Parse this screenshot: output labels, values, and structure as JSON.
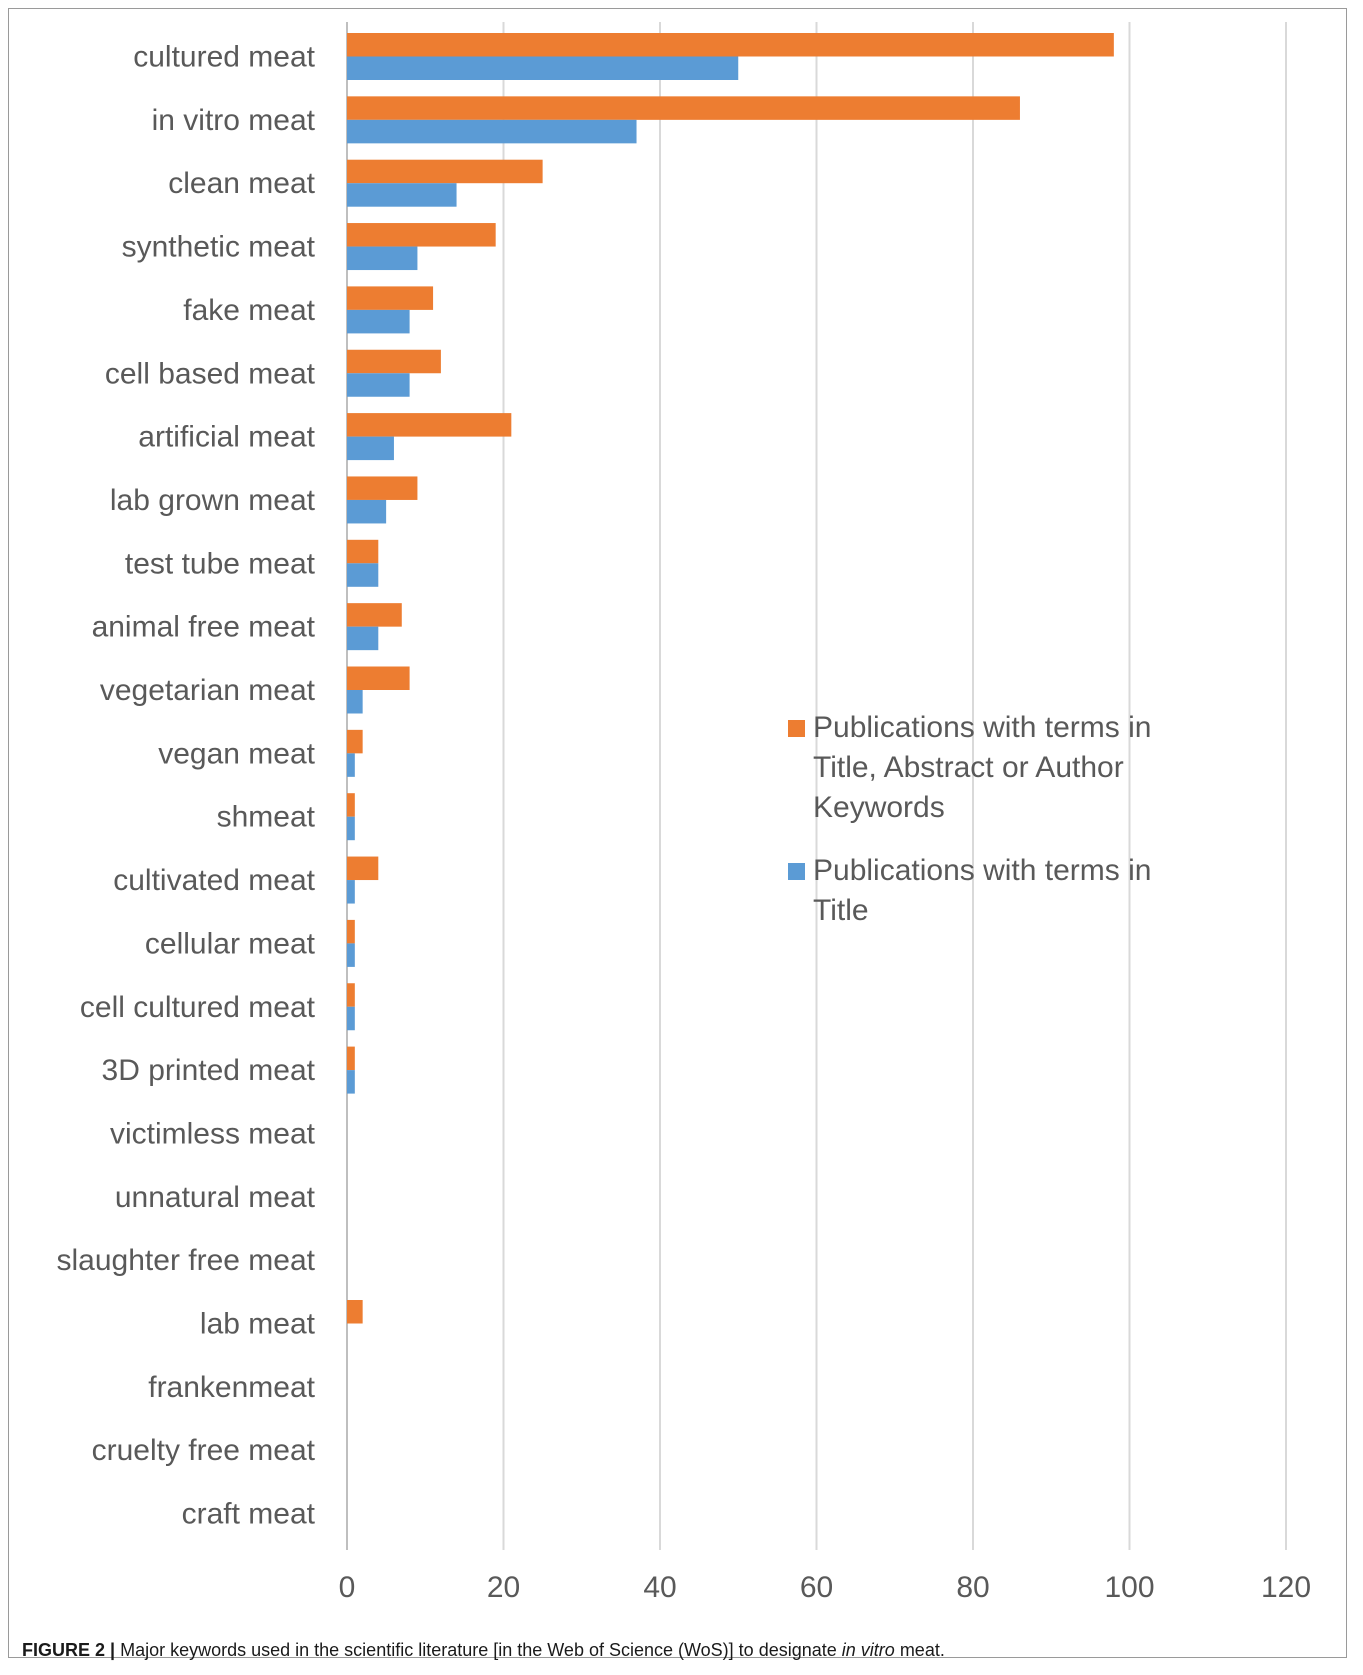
{
  "chart_data": {
    "type": "bar",
    "orientation": "horizontal",
    "categories": [
      "cultured meat",
      "in vitro meat",
      "clean meat",
      "synthetic meat",
      "fake meat",
      "cell based meat",
      "artificial meat",
      "lab grown meat",
      "test tube meat",
      "animal free meat",
      "vegetarian meat",
      "vegan meat",
      "shmeat",
      "cultivated meat",
      "cellular meat",
      "cell cultured meat",
      "3D printed meat",
      "victimless meat",
      "unnatural meat",
      "slaughter free meat",
      "lab meat",
      "frankenmeat",
      "cruelty free meat",
      "craft meat"
    ],
    "series": [
      {
        "name": "Publications with terms in Title, Abstract or Author Keywords",
        "legend_lines": [
          "Publications with terms in",
          "Title, Abstract or Author",
          "Keywords"
        ],
        "color": "#ED7D31",
        "values": [
          98,
          86,
          25,
          19,
          11,
          12,
          21,
          9,
          4,
          7,
          8,
          2,
          1,
          4,
          1,
          1,
          1,
          0,
          0,
          0,
          2,
          0,
          0,
          0
        ]
      },
      {
        "name": "Publications with terms in Title",
        "legend_lines": [
          "Publications with terms in",
          "Title"
        ],
        "color": "#5B9BD5",
        "values": [
          50,
          37,
          14,
          9,
          8,
          8,
          6,
          5,
          4,
          4,
          2,
          1,
          1,
          1,
          1,
          1,
          1,
          0,
          0,
          0,
          0,
          0,
          0,
          0
        ]
      }
    ],
    "xlim": [
      0,
      120
    ],
    "xticks": [
      "0",
      "20",
      "40",
      "60",
      "80",
      "100",
      "120"
    ],
    "grid": "vertical",
    "legend_position": "right-middle",
    "title": "",
    "xlabel": "",
    "ylabel": ""
  },
  "caption": {
    "label": "FIGURE 2 |",
    "text_before": "Major keywords used in the scientific literature [in the Web of Science (WoS)] to designate",
    "text_italic": "in vitro",
    "text_after": "meat."
  }
}
